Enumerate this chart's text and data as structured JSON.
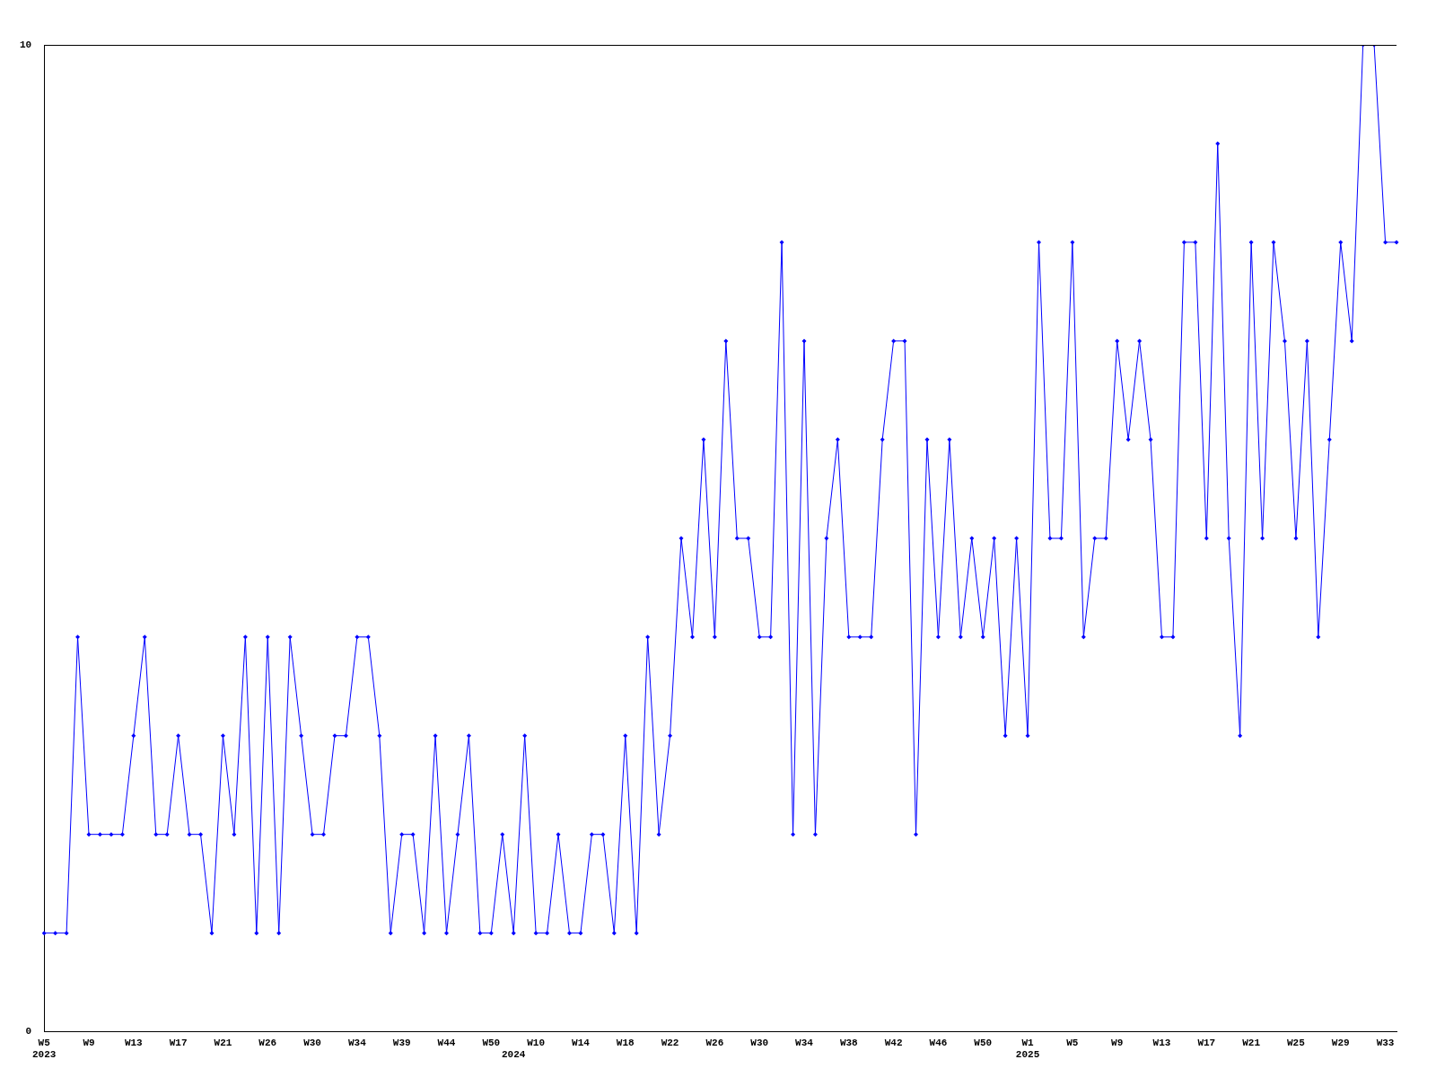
{
  "chart_data": {
    "type": "line",
    "categories": [
      "W5\n2023",
      null,
      null,
      null,
      "W9",
      null,
      null,
      null,
      "W13",
      null,
      null,
      null,
      "W17",
      null,
      null,
      null,
      "W21",
      null,
      null,
      null,
      "W26",
      null,
      null,
      null,
      "W30",
      null,
      null,
      null,
      "W34",
      null,
      null,
      null,
      "W39",
      null,
      null,
      null,
      "W44",
      null,
      null,
      null,
      "W50",
      null,
      "\n2024",
      null,
      "W10",
      null,
      null,
      null,
      "W14",
      null,
      null,
      null,
      "W18",
      null,
      null,
      null,
      "W22",
      null,
      null,
      null,
      "W26",
      null,
      null,
      null,
      "W30",
      null,
      null,
      null,
      "W34",
      null,
      null,
      null,
      "W38",
      null,
      null,
      null,
      "W42",
      null,
      null,
      null,
      "W46",
      null,
      null,
      null,
      "W50",
      null,
      null,
      null,
      "W1\n2025",
      null,
      null,
      null,
      "W5",
      null,
      null,
      null,
      "W9",
      null,
      null,
      null,
      "W13",
      null,
      null,
      null,
      "W17",
      null,
      null,
      null,
      "W21",
      null,
      null,
      null,
      "W25",
      null,
      null,
      null,
      "W29",
      null,
      null,
      null,
      "W33",
      null
    ],
    "series": [
      {
        "color": "#0000ff",
        "values": [
          1,
          1,
          1,
          4,
          2,
          2,
          2,
          2,
          3,
          4,
          2,
          2,
          3,
          2,
          2,
          1,
          3,
          2,
          4,
          1,
          4,
          1,
          4,
          3,
          2,
          2,
          3,
          3,
          4,
          4,
          3,
          1,
          2,
          2,
          1,
          3,
          1,
          2,
          3,
          1,
          1,
          2,
          1,
          3,
          1,
          1,
          2,
          1,
          1,
          2,
          2,
          1,
          3,
          1,
          4,
          2,
          3,
          5,
          4,
          6,
          4,
          7,
          5,
          5,
          4,
          4,
          8,
          2,
          7,
          2,
          5,
          6,
          4,
          4,
          4,
          6,
          7,
          7,
          2,
          6,
          4,
          6,
          4,
          5,
          4,
          5,
          3,
          5,
          3,
          8,
          5,
          5,
          8,
          4,
          5,
          5,
          7,
          6,
          7,
          6,
          4,
          4,
          8,
          8,
          5,
          9,
          5,
          3,
          8,
          5,
          8,
          7,
          5,
          7,
          4,
          6,
          8,
          7,
          10,
          10,
          8,
          8
        ]
      }
    ],
    "ylim": [
      0,
      10
    ],
    "yticks": [
      0,
      10
    ],
    "marker": "diamond",
    "line_style": "solid",
    "legend": false
  }
}
